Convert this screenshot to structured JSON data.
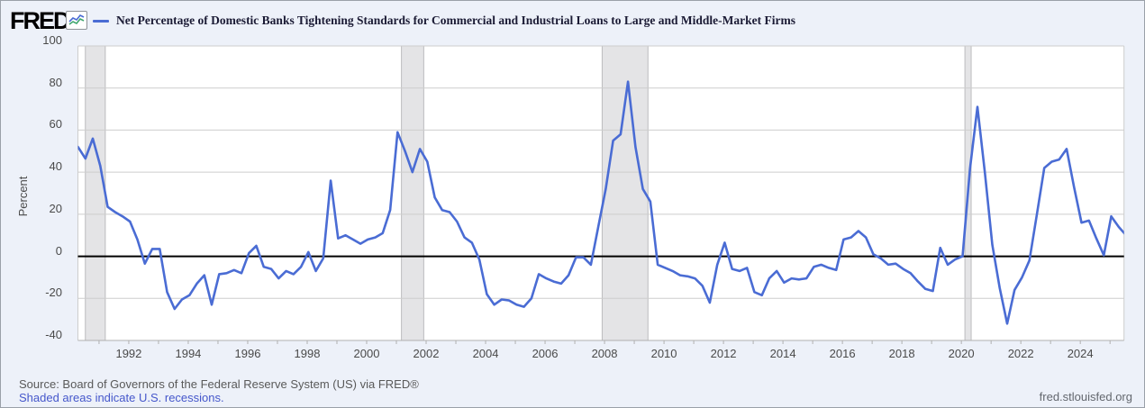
{
  "header": {
    "logo_text": "FRED",
    "logo_mark": ".",
    "legend_label": "Net Percentage of Domestic Banks Tightening Standards for Commercial and Industrial Loans to Large and Middle-Market Firms"
  },
  "footer": {
    "source_text": "Source: Board of Governors of the Federal Reserve System (US) via FRED®",
    "recession_note": "Shaded areas indicate U.S. recessions.",
    "site_url": "fred.stlouisfed.org"
  },
  "colors": {
    "page_bg": "#edf1f9",
    "link_blue": "#4557cb",
    "title_text": "#1b1b35"
  },
  "chart_data": {
    "type": "line",
    "title": "Net Percentage of Domestic Banks Tightening Standards for Commercial and Industrial Loans to Large and Middle-Market Firms",
    "xlabel": "",
    "ylabel": "Percent",
    "ylim": [
      -40,
      100
    ],
    "yticks": [
      100,
      80,
      60,
      40,
      20,
      0,
      -20,
      -40
    ],
    "xlim": [
      1990.29,
      2025.47
    ],
    "xticks": [
      1992,
      1994,
      1996,
      1998,
      2000,
      2002,
      2004,
      2006,
      2008,
      2010,
      2012,
      2014,
      2016,
      2018,
      2020,
      2022,
      2024
    ],
    "grid": true,
    "legend_position": "top",
    "zero_line": true,
    "frequency": "quarterly",
    "recession_note": "Shaded areas indicate U.S. recessions",
    "recession_bands": [
      [
        1990.54,
        1991.21
      ],
      [
        2001.17,
        2001.92
      ],
      [
        2007.92,
        2009.46
      ],
      [
        2020.12,
        2020.33
      ]
    ],
    "colors": {
      "series": "#4a6cd4",
      "plot_bg": "#ffffff",
      "grid": "#cdcdcd",
      "axis": "#b0b0b0",
      "zero_line": "#000000",
      "recession": "#e4e4e6",
      "recession_edge": "#bcbcbe"
    },
    "series_name": "Net Percentage of Domestic Banks Tightening Standards for Commercial and Industrial Loans to Large and Middle-Market Firms",
    "points": [
      [
        1990.29,
        52
      ],
      [
        1990.54,
        46.5
      ],
      [
        1990.79,
        56
      ],
      [
        1991.04,
        43
      ],
      [
        1991.29,
        23.5
      ],
      [
        1991.54,
        21
      ],
      [
        1991.79,
        19
      ],
      [
        1992.04,
        16.5
      ],
      [
        1992.29,
        8
      ],
      [
        1992.54,
        -3.5
      ],
      [
        1992.79,
        3.5
      ],
      [
        1993.04,
        3.5
      ],
      [
        1993.29,
        -17
      ],
      [
        1993.54,
        -25
      ],
      [
        1993.79,
        -20.5
      ],
      [
        1994.04,
        -18.5
      ],
      [
        1994.29,
        -13
      ],
      [
        1994.54,
        -9
      ],
      [
        1994.79,
        -23
      ],
      [
        1995.04,
        -8.5
      ],
      [
        1995.29,
        -8
      ],
      [
        1995.54,
        -6.5
      ],
      [
        1995.79,
        -8
      ],
      [
        1996.04,
        1.5
      ],
      [
        1996.29,
        5
      ],
      [
        1996.54,
        -5
      ],
      [
        1996.79,
        -6
      ],
      [
        1997.04,
        -10.5
      ],
      [
        1997.29,
        -7
      ],
      [
        1997.54,
        -8.5
      ],
      [
        1997.79,
        -5
      ],
      [
        1998.04,
        2
      ],
      [
        1998.29,
        -7
      ],
      [
        1998.54,
        -1
      ],
      [
        1998.79,
        36
      ],
      [
        1999.04,
        8.5
      ],
      [
        1999.29,
        10
      ],
      [
        1999.54,
        8
      ],
      [
        1999.79,
        6
      ],
      [
        2000.04,
        8
      ],
      [
        2000.29,
        9
      ],
      [
        2000.54,
        11
      ],
      [
        2000.79,
        22
      ],
      [
        2001.04,
        59
      ],
      [
        2001.29,
        50
      ],
      [
        2001.54,
        40
      ],
      [
        2001.79,
        51
      ],
      [
        2002.04,
        45
      ],
      [
        2002.29,
        28
      ],
      [
        2002.54,
        22
      ],
      [
        2002.79,
        21
      ],
      [
        2003.04,
        16.5
      ],
      [
        2003.29,
        9
      ],
      [
        2003.54,
        6.5
      ],
      [
        2003.79,
        -1.5
      ],
      [
        2004.04,
        -18
      ],
      [
        2004.29,
        -23
      ],
      [
        2004.54,
        -20.5
      ],
      [
        2004.79,
        -21
      ],
      [
        2005.04,
        -23
      ],
      [
        2005.29,
        -24
      ],
      [
        2005.54,
        -20
      ],
      [
        2005.79,
        -8.5
      ],
      [
        2006.04,
        -10.5
      ],
      [
        2006.29,
        -12
      ],
      [
        2006.54,
        -13
      ],
      [
        2006.79,
        -9
      ],
      [
        2007.04,
        -0.5
      ],
      [
        2007.29,
        -0.5
      ],
      [
        2007.54,
        -4
      ],
      [
        2007.79,
        14
      ],
      [
        2008.04,
        32
      ],
      [
        2008.29,
        55
      ],
      [
        2008.54,
        58
      ],
      [
        2008.79,
        83
      ],
      [
        2009.04,
        52
      ],
      [
        2009.29,
        32
      ],
      [
        2009.54,
        26
      ],
      [
        2009.79,
        -4
      ],
      [
        2010.04,
        -5.5
      ],
      [
        2010.29,
        -7
      ],
      [
        2010.54,
        -9
      ],
      [
        2010.79,
        -9.5
      ],
      [
        2011.04,
        -10.5
      ],
      [
        2011.29,
        -14
      ],
      [
        2011.54,
        -22
      ],
      [
        2011.79,
        -4
      ],
      [
        2012.04,
        6.5
      ],
      [
        2012.29,
        -6
      ],
      [
        2012.54,
        -7
      ],
      [
        2012.79,
        -5.5
      ],
      [
        2013.04,
        -17
      ],
      [
        2013.29,
        -18.5
      ],
      [
        2013.54,
        -10.5
      ],
      [
        2013.79,
        -7
      ],
      [
        2014.04,
        -12.5
      ],
      [
        2014.29,
        -10.5
      ],
      [
        2014.54,
        -11
      ],
      [
        2014.79,
        -10.5
      ],
      [
        2015.04,
        -5
      ],
      [
        2015.29,
        -4
      ],
      [
        2015.54,
        -5.5
      ],
      [
        2015.79,
        -6.5
      ],
      [
        2016.04,
        8
      ],
      [
        2016.29,
        9
      ],
      [
        2016.54,
        12
      ],
      [
        2016.79,
        9
      ],
      [
        2017.04,
        1
      ],
      [
        2017.29,
        -1
      ],
      [
        2017.54,
        -4
      ],
      [
        2017.79,
        -3.5
      ],
      [
        2018.04,
        -6
      ],
      [
        2018.29,
        -8
      ],
      [
        2018.54,
        -12
      ],
      [
        2018.79,
        -15.5
      ],
      [
        2019.04,
        -16.5
      ],
      [
        2019.29,
        4
      ],
      [
        2019.54,
        -4
      ],
      [
        2019.79,
        -1.5
      ],
      [
        2020.04,
        0
      ],
      [
        2020.29,
        41.5
      ],
      [
        2020.54,
        71
      ],
      [
        2020.79,
        40
      ],
      [
        2021.04,
        5.5
      ],
      [
        2021.29,
        -15
      ],
      [
        2021.54,
        -32
      ],
      [
        2021.79,
        -16
      ],
      [
        2022.04,
        -10
      ],
      [
        2022.29,
        -2
      ],
      [
        2022.54,
        20
      ],
      [
        2022.79,
        42
      ],
      [
        2023.04,
        45
      ],
      [
        2023.29,
        46
      ],
      [
        2023.54,
        51
      ],
      [
        2023.79,
        33
      ],
      [
        2024.04,
        16
      ],
      [
        2024.29,
        17
      ],
      [
        2024.54,
        8.5
      ],
      [
        2024.79,
        0.5
      ],
      [
        2025.04,
        19
      ],
      [
        2025.29,
        14
      ],
      [
        2025.54,
        10
      ]
    ]
  }
}
